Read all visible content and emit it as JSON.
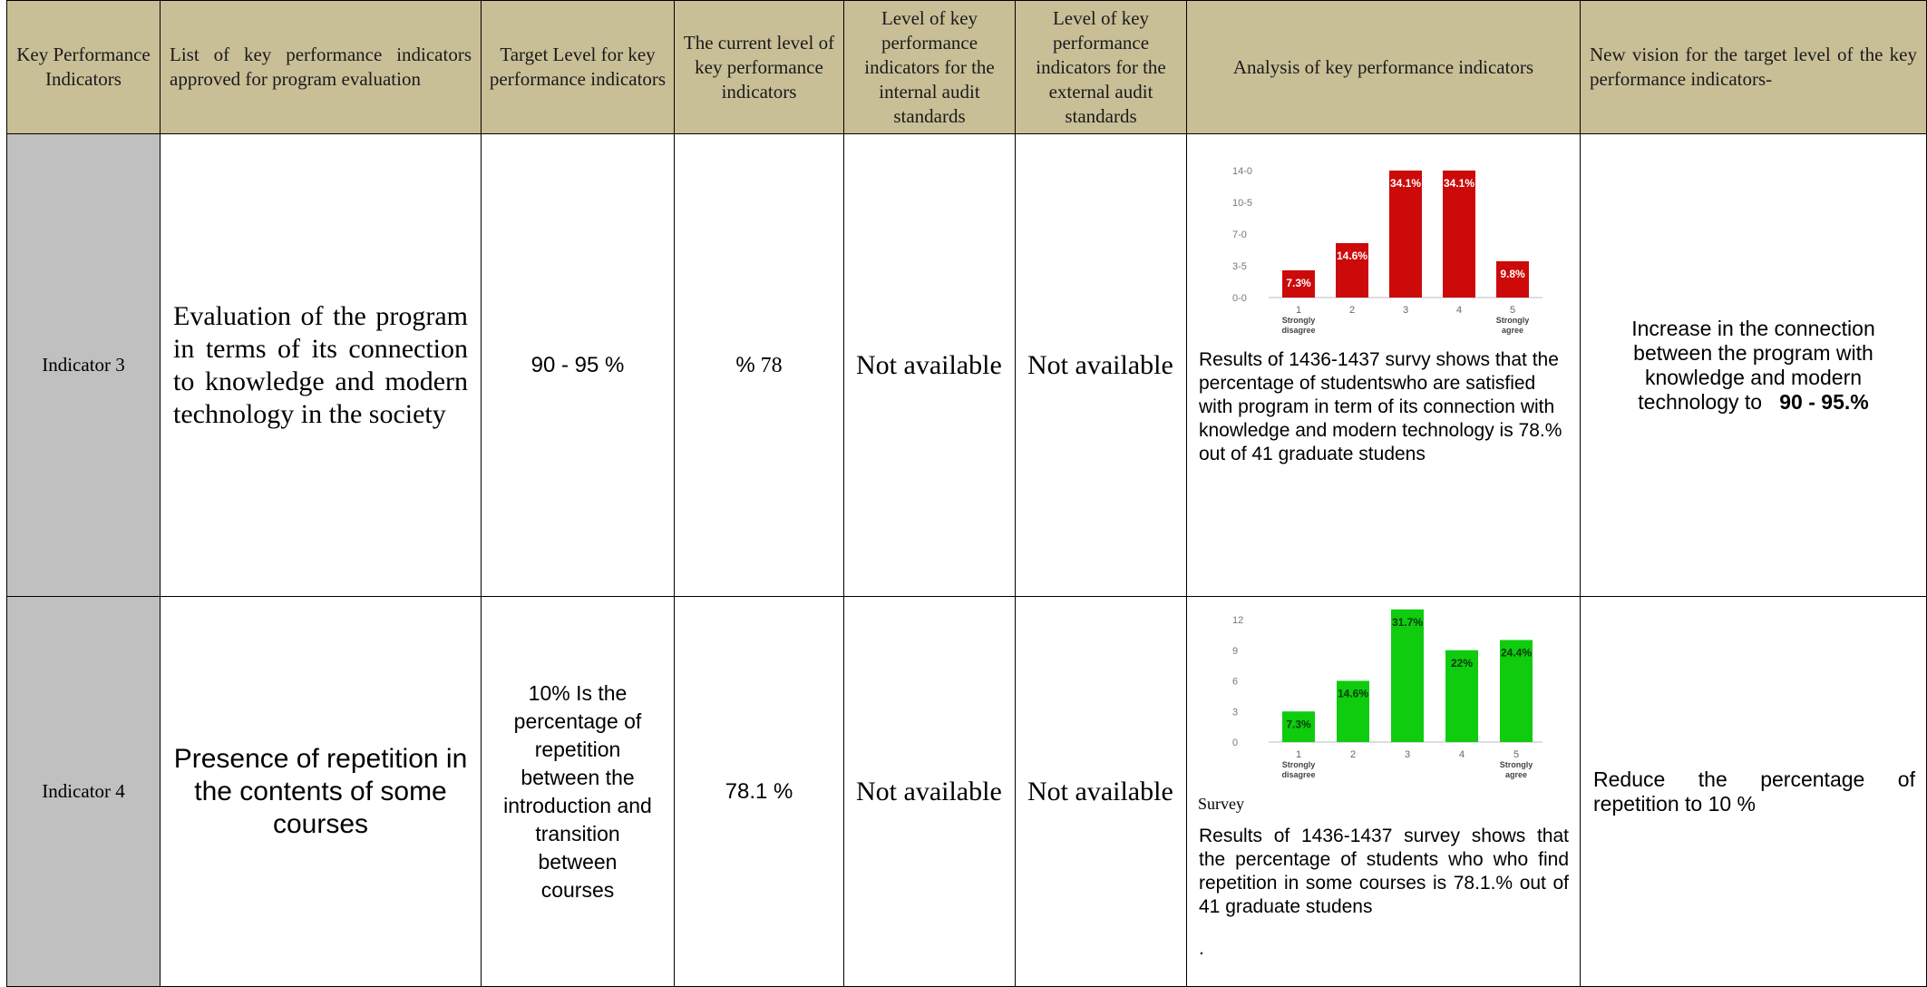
{
  "headers": {
    "col1": "Key Performance Indicators",
    "col2": "List of key performance indicators approved for program evaluation",
    "col3": "Target Level for key performance indicators",
    "col4": "The current level of key performance indicators",
    "col5": "Level of key performance indicators for the internal audit standards",
    "col6": "Level of key performance indicators for the external audit standards",
    "col7": "Analysis of key performance indicators",
    "col8": "New vision for the target level of the key performance indicators-"
  },
  "rows": [
    {
      "indicator": "Indicator 3",
      "kpi": "Evaluation of the program in terms of its connection to knowledge and modern technology in the society",
      "target": "90 - 95 %",
      "current_prefix": "%",
      "current_value": "78",
      "internal": "Not available",
      "external": "Not available",
      "analysis": "Results of 1436-1437 survy shows that the percentage of studentswho are satisfied with program  in term of its connection with knowledge and modern technology is 78.% out of 41 graduate studens",
      "vision_text": "Increase in the connection between the program with knowledge and modern technology to",
      "vision_bold": "90 - 95.%"
    },
    {
      "indicator": "Indicator 4",
      "kpi": "Presence of repetition in the contents of some courses",
      "target": "10% Is the percentage of repetition between the introduction and transition between courses",
      "current": "78.1 %",
      "internal": "Not available",
      "external": "Not available",
      "survey_label": "Survey",
      "analysis": "Results of 1436-1437 survey shows that the percentage of students who who find repetition in some courses is 78.1.% out of 41 graduate studens",
      "trailing_mark": ".",
      "vision": "Reduce the percentage of repetition to 10 %"
    }
  ],
  "chart_data": [
    {
      "type": "bar",
      "categories": [
        "1",
        "2",
        "3",
        "4",
        "5"
      ],
      "category_sublabels": [
        "Strongly disagree",
        "",
        "",
        "",
        "Strongly agree"
      ],
      "values": [
        3,
        6,
        14,
        14,
        4
      ],
      "data_labels": [
        "7.3%",
        "14.6%",
        "34.1%",
        "34.1%",
        "9.8%"
      ],
      "yticks": [
        "0-0",
        "3-5",
        "7-0",
        "10-5",
        "14-0"
      ],
      "ylim": [
        0,
        14
      ],
      "color": "#cc0a0a",
      "grid": false
    },
    {
      "type": "bar",
      "categories": [
        "1",
        "2",
        "3",
        "4",
        "5"
      ],
      "category_sublabels": [
        "Strongly disagree",
        "",
        "",
        "",
        "Strongly agree"
      ],
      "values": [
        3,
        6,
        13,
        9,
        10
      ],
      "data_labels": [
        "7.3%",
        "14.6%",
        "31.7%",
        "22%",
        "24.4%"
      ],
      "yticks": [
        "0",
        "3",
        "6",
        "9",
        "12"
      ],
      "ylim": [
        0,
        12
      ],
      "color": "#0fcc0f",
      "grid": false
    }
  ]
}
